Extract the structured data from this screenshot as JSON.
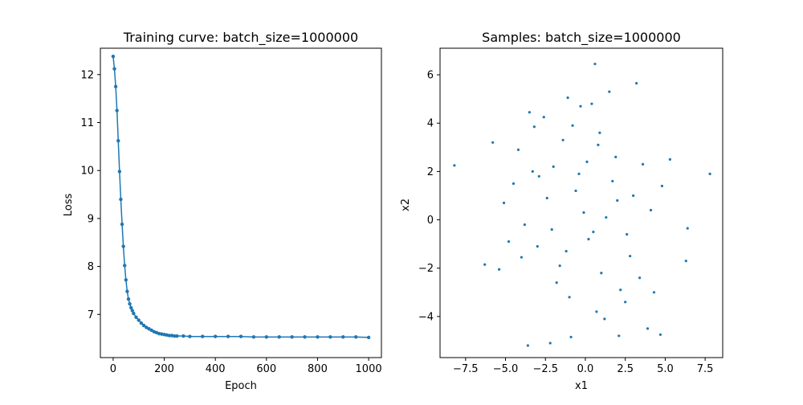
{
  "colors": {
    "series": "#1f77b4",
    "axis": "#000000",
    "background": "#ffffff"
  },
  "chart_data": [
    {
      "type": "line",
      "title": "Training curve: batch_size=1000000",
      "xlabel": "Epoch",
      "ylabel": "Loss",
      "xlim": [
        -50,
        1050
      ],
      "ylim": [
        6.1,
        12.55
      ],
      "xticks": [
        0,
        200,
        400,
        600,
        800,
        1000
      ],
      "yticks": [
        7,
        8,
        9,
        10,
        11,
        12
      ],
      "grid": false,
      "legend": "none",
      "marker": "dot",
      "series": [
        {
          "x": [
            0,
            5,
            10,
            15,
            20,
            25,
            30,
            35,
            40,
            45,
            50,
            55,
            60,
            65,
            70,
            75,
            80,
            90,
            100,
            110,
            120,
            130,
            140,
            150,
            160,
            170,
            180,
            190,
            200,
            210,
            220,
            230,
            240,
            250,
            275,
            300,
            350,
            400,
            450,
            500,
            550,
            600,
            650,
            700,
            750,
            800,
            850,
            900,
            950,
            1000
          ],
          "y": [
            12.38,
            12.12,
            11.75,
            11.25,
            10.62,
            9.98,
            9.4,
            8.88,
            8.42,
            8.02,
            7.72,
            7.48,
            7.32,
            7.22,
            7.14,
            7.08,
            7.02,
            6.94,
            6.88,
            6.82,
            6.77,
            6.73,
            6.7,
            6.67,
            6.64,
            6.62,
            6.6,
            6.59,
            6.58,
            6.57,
            6.56,
            6.56,
            6.55,
            6.55,
            6.55,
            6.54,
            6.54,
            6.54,
            6.54,
            6.54,
            6.53,
            6.53,
            6.53,
            6.53,
            6.53,
            6.53,
            6.53,
            6.53,
            6.53,
            6.52
          ]
        }
      ]
    },
    {
      "type": "scatter",
      "title": "Samples: batch_size=1000000",
      "xlabel": "x1",
      "ylabel": "x2",
      "xlim": [
        -9.1,
        8.6
      ],
      "ylim": [
        -5.7,
        7.1
      ],
      "xticks": [
        -7.5,
        -5.0,
        -2.5,
        0.0,
        2.5,
        5.0,
        7.5
      ],
      "xtick_labels": [
        "−7.5",
        "−5.0",
        "−2.5",
        "0.0",
        "2.5",
        "5.0",
        "7.5"
      ],
      "yticks": [
        -4,
        -2,
        0,
        2,
        4,
        6
      ],
      "ytick_labels": [
        "−4",
        "−2",
        "0",
        "2",
        "4",
        "6"
      ],
      "grid": false,
      "legend": "none",
      "series": [
        {
          "x": [
            -8.2,
            7.8,
            0.6,
            -6.3,
            -5.8,
            -3.5,
            -4.0,
            -3.2,
            -5.4,
            5.3,
            6.3,
            6.4,
            4.7,
            -3.6,
            -2.2,
            3.2,
            3.9,
            2.1,
            1.5,
            -1.1,
            -0.9,
            0.4,
            2.5,
            -2.6,
            1.2,
            -0.3,
            -4.2,
            4.3,
            -5.1,
            -4.8,
            3.6,
            -1.8,
            0.8,
            -2.9,
            2.8,
            1.9,
            -0.6,
            0.2,
            -1.4,
            1.0,
            -3.0,
            3.0,
            -2.0,
            2.2,
            -0.1,
            0.5,
            -1.6,
            1.7,
            -3.8,
            4.1,
            -2.4,
            2.6,
            -1.0,
            0.9,
            -0.4,
            0.1,
            3.4,
            -3.3,
            1.3,
            -1.2,
            4.8,
            -4.5,
            0.7,
            -0.8,
            2.0,
            -2.1
          ],
          "y": [
            2.25,
            1.9,
            6.45,
            -1.85,
            3.2,
            4.45,
            -1.55,
            3.85,
            -2.05,
            2.5,
            -1.7,
            -0.35,
            -4.75,
            -5.2,
            -5.1,
            5.65,
            -4.5,
            -4.8,
            5.3,
            5.05,
            -4.85,
            4.8,
            -3.4,
            4.25,
            -4.1,
            4.7,
            2.9,
            -3.0,
            0.7,
            -0.9,
            2.3,
            -2.6,
            3.1,
            1.8,
            -1.5,
            2.6,
            1.2,
            -0.8,
            3.3,
            -2.2,
            -1.1,
            1.0,
            2.2,
            -2.9,
            0.3,
            -0.5,
            -1.9,
            1.6,
            -0.2,
            0.4,
            0.9,
            -0.6,
            -3.2,
            3.6,
            1.9,
            2.4,
            -2.4,
            2.0,
            0.1,
            -1.3,
            1.4,
            1.5,
            -3.8,
            3.9,
            0.8,
            -0.4
          ]
        }
      ]
    }
  ]
}
